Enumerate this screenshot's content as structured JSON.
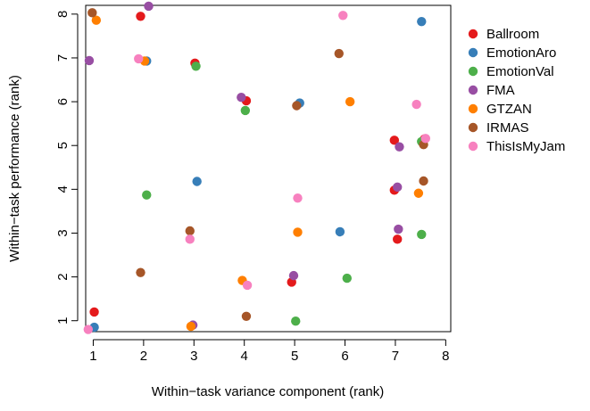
{
  "chart_data": {
    "type": "scatter",
    "title": "",
    "xlabel": "Within−task variance component (rank)",
    "ylabel": "Within−task performance (rank)",
    "xlim": [
      0.85,
      8.1
    ],
    "ylim": [
      0.75,
      8.2
    ],
    "x_ticks": [
      1,
      2,
      3,
      4,
      5,
      6,
      7,
      8
    ],
    "y_ticks": [
      1,
      2,
      3,
      4,
      5,
      6,
      7,
      8
    ],
    "grid": false,
    "legend_position": "right",
    "series": [
      {
        "name": "Ballroom",
        "color": "#e41a1c",
        "points": [
          [
            1.02,
            1.2
          ],
          [
            1.94,
            7.95
          ],
          [
            3.02,
            6.88
          ],
          [
            4.04,
            6.02
          ],
          [
            4.94,
            1.88
          ],
          [
            6.98,
            5.12
          ],
          [
            6.98,
            3.98
          ],
          [
            7.04,
            2.86
          ],
          [
            7.58,
            5.15
          ]
        ]
      },
      {
        "name": "EmotionAro",
        "color": "#377eb8",
        "points": [
          [
            1.02,
            0.85
          ],
          [
            2.06,
            6.93
          ],
          [
            3.06,
            4.18
          ],
          [
            5.1,
            5.97
          ],
          [
            5.9,
            3.03
          ],
          [
            7.52,
            7.83
          ]
        ]
      },
      {
        "name": "EmotionVal",
        "color": "#4daf4a",
        "points": [
          [
            2.06,
            3.87
          ],
          [
            3.04,
            6.81
          ],
          [
            4.02,
            5.8
          ],
          [
            5.02,
            0.99
          ],
          [
            6.04,
            1.97
          ],
          [
            7.52,
            2.97
          ],
          [
            7.52,
            5.09
          ]
        ]
      },
      {
        "name": "FMA",
        "color": "#984ea3",
        "points": [
          [
            0.92,
            6.94
          ],
          [
            2.1,
            8.18
          ],
          [
            2.98,
            0.9
          ],
          [
            3.94,
            6.1
          ],
          [
            4.98,
            2.03
          ],
          [
            7.04,
            4.05
          ],
          [
            7.06,
            3.09
          ],
          [
            7.08,
            4.97
          ]
        ]
      },
      {
        "name": "GTZAN",
        "color": "#ff7f00",
        "points": [
          [
            1.06,
            7.86
          ],
          [
            2.02,
            6.93
          ],
          [
            2.94,
            0.87
          ],
          [
            3.96,
            1.92
          ],
          [
            5.06,
            3.02
          ],
          [
            6.1,
            6.0
          ],
          [
            7.46,
            3.91
          ]
        ]
      },
      {
        "name": "IRMAS",
        "color": "#a65628",
        "points": [
          [
            0.98,
            8.03
          ],
          [
            1.94,
            2.1
          ],
          [
            2.92,
            3.05
          ],
          [
            4.04,
            1.1
          ],
          [
            5.04,
            5.91
          ],
          [
            5.88,
            7.1
          ],
          [
            7.56,
            5.02
          ],
          [
            7.56,
            4.19
          ]
        ]
      },
      {
        "name": "ThisIsMyJam",
        "color": "#f781bf",
        "points": [
          [
            0.9,
            0.8
          ],
          [
            1.9,
            6.98
          ],
          [
            2.92,
            2.86
          ],
          [
            4.06,
            1.81
          ],
          [
            5.06,
            3.8
          ],
          [
            5.96,
            7.97
          ],
          [
            7.42,
            5.94
          ],
          [
            7.6,
            5.16
          ]
        ]
      }
    ]
  }
}
